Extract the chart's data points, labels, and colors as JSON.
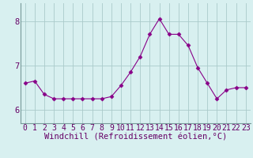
{
  "x": [
    0,
    1,
    2,
    3,
    4,
    5,
    6,
    7,
    8,
    9,
    10,
    11,
    12,
    13,
    14,
    15,
    16,
    17,
    18,
    19,
    20,
    21,
    22,
    23
  ],
  "y": [
    6.6,
    6.65,
    6.35,
    6.25,
    6.25,
    6.25,
    6.25,
    6.25,
    6.25,
    6.3,
    6.55,
    6.85,
    7.2,
    7.7,
    8.05,
    7.7,
    7.7,
    7.45,
    6.95,
    6.6,
    6.25,
    6.45,
    6.5,
    6.5
  ],
  "line_color": "#880088",
  "marker": "D",
  "marker_size": 2.5,
  "bg_color": "#d8f0f0",
  "grid_color": "#aacaca",
  "xlabel": "Windchill (Refroidissement éolien,°C)",
  "xlabel_fontsize": 7.5,
  "tick_fontsize": 7,
  "ylim": [
    5.7,
    8.4
  ],
  "yticks": [
    6,
    7,
    8
  ],
  "xtick_labels": [
    "0",
    "1",
    "2",
    "3",
    "4",
    "5",
    "6",
    "7",
    "8",
    "9",
    "10",
    "11",
    "12",
    "13",
    "14",
    "15",
    "16",
    "17",
    "18",
    "19",
    "20",
    "21",
    "22",
    "23"
  ]
}
